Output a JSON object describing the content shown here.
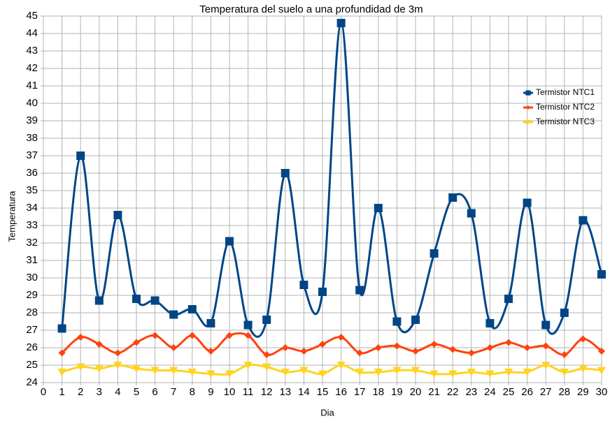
{
  "chart_data": {
    "type": "line",
    "title": "Temperatura del suelo a una profundidad de 3m",
    "x_label": "Dia",
    "y_label": "Temperatura",
    "x": [
      1,
      2,
      3,
      4,
      5,
      6,
      7,
      8,
      9,
      10,
      11,
      12,
      13,
      14,
      15,
      16,
      17,
      18,
      19,
      20,
      21,
      22,
      23,
      24,
      25,
      26,
      27,
      28,
      29,
      30
    ],
    "series": [
      {
        "name": "Termistor NTC1",
        "color": "#004586",
        "marker": "square",
        "values": [
          27.1,
          37.0,
          28.7,
          33.6,
          28.8,
          28.7,
          27.9,
          28.2,
          27.4,
          32.1,
          27.3,
          27.6,
          36.0,
          29.6,
          29.2,
          44.6,
          29.3,
          34.0,
          27.5,
          27.6,
          31.4,
          34.6,
          33.7,
          27.4,
          28.8,
          34.3,
          27.3,
          28.0,
          33.3,
          30.2
        ]
      },
      {
        "name": "Termistor NTC2",
        "color": "#ff420e",
        "marker": "diamond",
        "values": [
          25.7,
          26.6,
          26.2,
          25.7,
          26.3,
          26.7,
          26.0,
          26.7,
          25.8,
          26.7,
          26.7,
          25.6,
          26.0,
          25.8,
          26.2,
          26.6,
          25.7,
          26.0,
          26.1,
          25.8,
          26.2,
          25.9,
          25.7,
          26.0,
          26.3,
          26.0,
          26.1,
          25.6,
          26.5,
          25.8
        ]
      },
      {
        "name": "Termistor NTC3",
        "color": "#ffd320",
        "marker": "triangle-down",
        "values": [
          24.6,
          24.9,
          24.8,
          25.0,
          24.8,
          24.7,
          24.7,
          24.6,
          24.5,
          24.5,
          25.0,
          24.9,
          24.6,
          24.7,
          24.5,
          25.0,
          24.6,
          24.6,
          24.7,
          24.7,
          24.5,
          24.5,
          24.6,
          24.5,
          24.6,
          24.6,
          25.0,
          24.6,
          24.8,
          24.7
        ]
      }
    ],
    "xlim": [
      0,
      30
    ],
    "xticks": [
      0,
      1,
      2,
      3,
      4,
      5,
      6,
      7,
      8,
      9,
      10,
      11,
      12,
      13,
      14,
      15,
      16,
      17,
      18,
      19,
      20,
      21,
      22,
      23,
      24,
      25,
      26,
      27,
      28,
      29,
      30
    ],
    "ylim": [
      24,
      45
    ],
    "yticks": [
      24,
      25,
      26,
      27,
      28,
      29,
      30,
      31,
      32,
      33,
      34,
      35,
      36,
      37,
      38,
      39,
      40,
      41,
      42,
      43,
      44,
      45
    ],
    "grid": true,
    "smooth": true,
    "legend": "right"
  }
}
